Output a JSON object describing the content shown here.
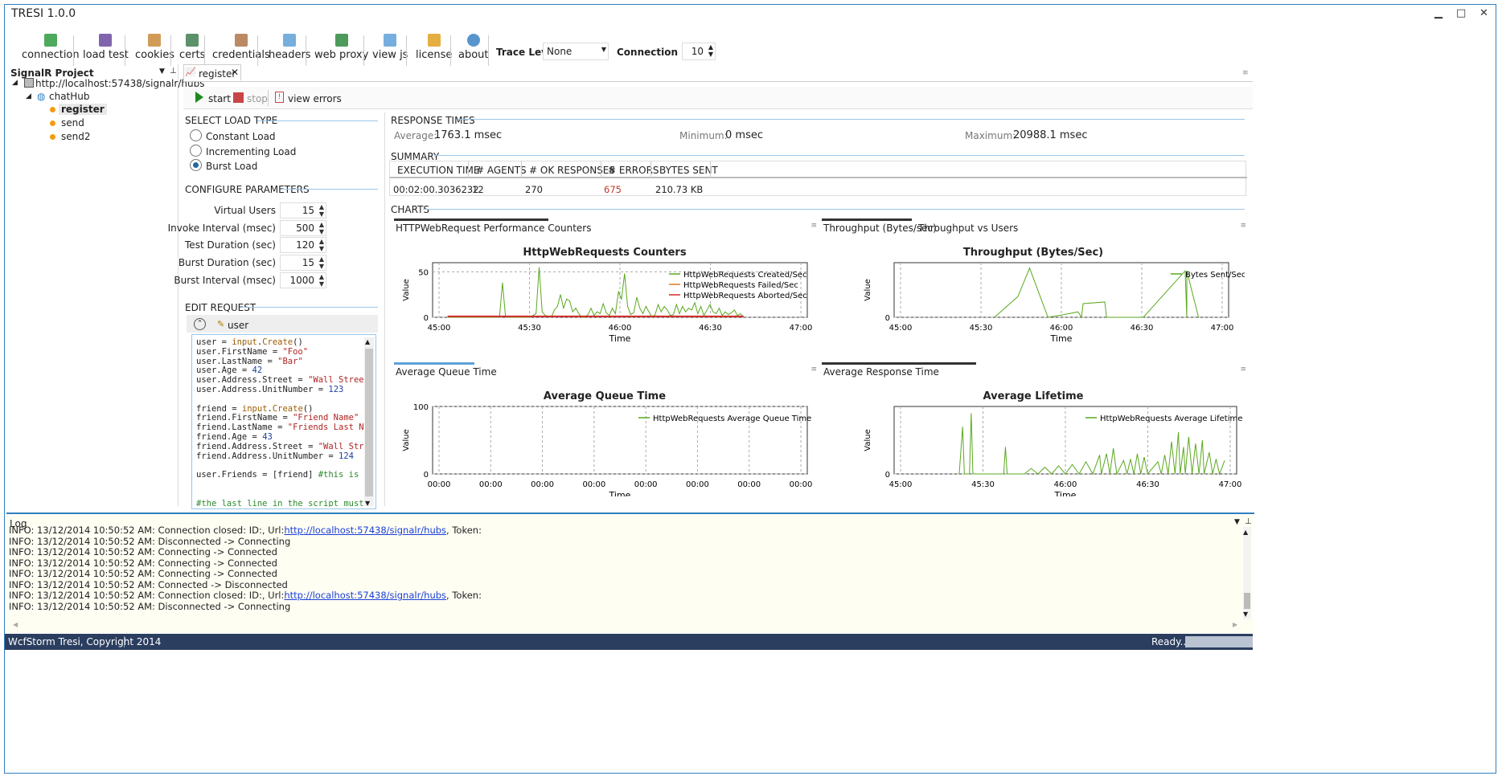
{
  "app": {
    "title": "TRESI 1.0.0",
    "min": "▁",
    "max": "□",
    "close": "✕"
  },
  "toolbar": {
    "items": [
      {
        "label": "connection",
        "icon": "connection-icon"
      },
      {
        "label": "load test",
        "icon": "chart-icon"
      },
      {
        "label": "cookies",
        "icon": "cookie-icon"
      },
      {
        "label": "certs",
        "icon": "cert-icon"
      },
      {
        "label": "credentials",
        "icon": "users-icon"
      },
      {
        "label": "headers",
        "icon": "headers-icon"
      },
      {
        "label": "web proxy",
        "icon": "globe-icon"
      },
      {
        "label": "view js",
        "icon": "js-icon"
      },
      {
        "label": "license",
        "icon": "key-icon"
      },
      {
        "label": "about",
        "icon": "info-icon"
      }
    ],
    "trace_label": "Trace Level:",
    "trace_value": "None",
    "conn_label": "Connection Limit",
    "conn_value": "10"
  },
  "project": {
    "title": "SignalR Project",
    "root": "http://localhost:57438/signalr/hubs",
    "hub": "chatHub",
    "methods": [
      "register",
      "send",
      "send2"
    ]
  },
  "doc_tab": {
    "label": "register"
  },
  "actions": {
    "start": "start",
    "stop": "stop",
    "view_errors": "view errors"
  },
  "load_type": {
    "heading": "SELECT LOAD TYPE",
    "options": [
      "Constant Load",
      "Incrementing Load",
      "Burst Load"
    ],
    "selected": "Burst Load"
  },
  "params": {
    "heading": "CONFIGURE PARAMETERS",
    "rows": [
      {
        "label": "Virtual Users",
        "value": "15"
      },
      {
        "label": "Invoke Interval (msec)",
        "value": "500"
      },
      {
        "label": "Test Duration (sec)",
        "value": "120"
      },
      {
        "label": "Burst Duration (sec)",
        "value": "15"
      },
      {
        "label": "Burst Interval (msec)",
        "value": "1000"
      }
    ]
  },
  "edit_request": {
    "heading": "EDIT REQUEST",
    "param": "user"
  },
  "response_times": {
    "heading": "RESPONSE TIMES",
    "avg_label": "Average:",
    "avg": "1763.1 msec",
    "min_label": "Minimum:",
    "min": "0 msec",
    "max_label": "Maximum:",
    "max": "20988.1 msec"
  },
  "summary": {
    "heading": "SUMMARY",
    "columns": [
      "EXECUTION TIME",
      "# AGENTS",
      "# OK RESPONSES",
      "# ERRORS",
      "BYTES SENT"
    ],
    "row": [
      "00:02:00.3036232",
      "12",
      "270",
      "675",
      "210.73 KB"
    ],
    "error_color": "#c0392b"
  },
  "charts_heading": "CHARTS",
  "chart_tabs": {
    "tl": [
      "HTTPWebRequest Performance Counters"
    ],
    "tr": [
      "Throughput (Bytes/sec)",
      "Throughput vs Users"
    ],
    "bl": [
      "Average Queue Time"
    ],
    "br": [
      "Average Response Time"
    ]
  },
  "chart_data": [
    {
      "type": "line",
      "title": "HttpWebRequests Counters",
      "xlabel": "Time",
      "ylabel": "Value",
      "xticks": [
        "45:00",
        "45:30",
        "46:00",
        "46:30",
        "47:00"
      ],
      "yticks": [
        "0",
        "50"
      ],
      "ylim": [
        0,
        60
      ],
      "series": [
        {
          "name": "HttpWebRequests Created/Sec",
          "color": "#5aa81e",
          "values": [
            0,
            0,
            0,
            0,
            0,
            0,
            0,
            0,
            0,
            0,
            0,
            0,
            0,
            0,
            0,
            0,
            0,
            0,
            38,
            0,
            0,
            0,
            0,
            0,
            0,
            0,
            0,
            0,
            2,
            4,
            55,
            6,
            2,
            1,
            0,
            8,
            12,
            25,
            10,
            20,
            18,
            6,
            10,
            4,
            0,
            0,
            3,
            10,
            2,
            6,
            4,
            15,
            5,
            2,
            10,
            4,
            28,
            20,
            48,
            12,
            3,
            5,
            22,
            10,
            4,
            12,
            6,
            0,
            3,
            14,
            6,
            12,
            8,
            2,
            3,
            14,
            4,
            12,
            6,
            10,
            8,
            16,
            4,
            12,
            2,
            8,
            14,
            6,
            4,
            10,
            2,
            6,
            3,
            5,
            8,
            2,
            4,
            0
          ]
        },
        {
          "name": "HttpWebRequests Failed/Sec",
          "color": "#e07b1f",
          "values": []
        },
        {
          "name": "HttpWebRequests Aborted/Sec",
          "color": "#d42a2a",
          "values": [
            1,
            1,
            1,
            1,
            1,
            1,
            1,
            1,
            1,
            1,
            1,
            1,
            1,
            1,
            1,
            1,
            1,
            1,
            1,
            1,
            1,
            1,
            1,
            1,
            1,
            1,
            1,
            1,
            1,
            1,
            1,
            1,
            1,
            1,
            1,
            1,
            1,
            1,
            1,
            1,
            1,
            1,
            1,
            1,
            1,
            1,
            1,
            1,
            1,
            1,
            1,
            1,
            1,
            1,
            1,
            1,
            1,
            1,
            1,
            1,
            1,
            1,
            1,
            1,
            1,
            1,
            1,
            1,
            1,
            1,
            1,
            1,
            1,
            1,
            1,
            1,
            1,
            1,
            1,
            1,
            1,
            1,
            1,
            1,
            1,
            1,
            1,
            1,
            1,
            1,
            1,
            1,
            1,
            1,
            1,
            1,
            1,
            1
          ]
        }
      ]
    },
    {
      "type": "line",
      "title": "Throughput (Bytes/Sec)",
      "xlabel": "Time",
      "ylabel": "Value",
      "xticks": [
        "45:00",
        "45:30",
        "46:00",
        "46:30",
        "47:00"
      ],
      "yticks": [
        "0"
      ],
      "ylim": [
        0,
        100
      ],
      "series": [
        {
          "name": "Bytes Sent/Sec",
          "color": "#5aa81e",
          "points": [
            [
              0.3,
              0
            ],
            [
              0.37,
              38
            ],
            [
              0.405,
              90
            ],
            [
              0.46,
              0
            ],
            [
              0.5,
              4
            ],
            [
              0.55,
              10
            ],
            [
              0.56,
              0
            ],
            [
              0.565,
              25
            ],
            [
              0.63,
              28
            ],
            [
              0.635,
              0
            ],
            [
              0.745,
              0
            ],
            [
              0.87,
              85
            ],
            [
              0.875,
              0
            ],
            [
              0.875,
              85
            ],
            [
              0.91,
              0
            ]
          ]
        }
      ]
    },
    {
      "type": "line",
      "title": "Average Queue Time",
      "xlabel": "Time",
      "ylabel": "Value",
      "xticks": [
        "00:00",
        "00:00",
        "00:00",
        "00:00",
        "00:00",
        "00:00",
        "00:00",
        "00:00"
      ],
      "yticks": [
        "0",
        "100"
      ],
      "ylim": [
        0,
        100
      ],
      "series": [
        {
          "name": "HttpWebRequests Average Queue Time",
          "color": "#5aa81e",
          "values": []
        }
      ]
    },
    {
      "type": "line",
      "title": "Average Lifetime",
      "xlabel": "Time",
      "ylabel": "Value",
      "xticks": [
        "45:00",
        "45:30",
        "46:00",
        "46:30",
        "47:00"
      ],
      "yticks": [
        "0"
      ],
      "ylim": [
        0,
        100
      ],
      "series": [
        {
          "name": "HttpWebRequests Average Lifetime",
          "color": "#5aa81e",
          "points": [
            [
              0.19,
              0
            ],
            [
              0.2,
              70
            ],
            [
              0.205,
              0
            ],
            [
              0.22,
              0
            ],
            [
              0.225,
              90
            ],
            [
              0.23,
              0
            ],
            [
              0.32,
              0
            ],
            [
              0.325,
              40
            ],
            [
              0.33,
              0
            ],
            [
              0.38,
              0
            ],
            [
              0.4,
              8
            ],
            [
              0.42,
              0
            ],
            [
              0.44,
              10
            ],
            [
              0.46,
              0
            ],
            [
              0.48,
              12
            ],
            [
              0.5,
              0
            ],
            [
              0.52,
              14
            ],
            [
              0.54,
              0
            ],
            [
              0.56,
              18
            ],
            [
              0.58,
              0
            ],
            [
              0.6,
              28
            ],
            [
              0.605,
              0
            ],
            [
              0.62,
              30
            ],
            [
              0.63,
              0
            ],
            [
              0.64,
              38
            ],
            [
              0.65,
              0
            ],
            [
              0.67,
              20
            ],
            [
              0.68,
              0
            ],
            [
              0.69,
              22
            ],
            [
              0.7,
              0
            ],
            [
              0.71,
              30
            ],
            [
              0.72,
              0
            ],
            [
              0.73,
              25
            ],
            [
              0.74,
              0
            ],
            [
              0.77,
              18
            ],
            [
              0.78,
              0
            ],
            [
              0.79,
              28
            ],
            [
              0.8,
              0
            ],
            [
              0.81,
              48
            ],
            [
              0.82,
              0
            ],
            [
              0.83,
              62
            ],
            [
              0.835,
              0
            ],
            [
              0.845,
              40
            ],
            [
              0.85,
              0
            ],
            [
              0.86,
              55
            ],
            [
              0.87,
              0
            ],
            [
              0.88,
              45
            ],
            [
              0.89,
              0
            ],
            [
              0.9,
              50
            ],
            [
              0.905,
              0
            ],
            [
              0.92,
              32
            ],
            [
              0.93,
              0
            ],
            [
              0.94,
              22
            ],
            [
              0.95,
              0
            ],
            [
              0.965,
              20
            ]
          ]
        }
      ]
    }
  ],
  "log": {
    "title": "Log",
    "lines": [
      {
        "text": "INFO: 13/12/2014 10:50:52 AM: Connection closed: ID:, Url:",
        "link": "http://localhost:57438/signalr/hubs",
        "tail": ", Token:"
      },
      {
        "text": "INFO: 13/12/2014 10:50:52 AM: Disconnected -> Connecting",
        "link": "",
        "tail": ""
      },
      {
        "text": "INFO: 13/12/2014 10:50:52 AM: Connecting -> Connected",
        "link": "",
        "tail": ""
      },
      {
        "text": "INFO: 13/12/2014 10:50:52 AM: Connecting -> Connected",
        "link": "",
        "tail": ""
      },
      {
        "text": "INFO: 13/12/2014 10:50:52 AM: Connecting -> Connected",
        "link": "",
        "tail": ""
      },
      {
        "text": "INFO: 13/12/2014 10:50:52 AM: Connected -> Disconnected",
        "link": "",
        "tail": ""
      },
      {
        "text": "INFO: 13/12/2014 10:50:52 AM: Connection closed: ID:, Url:",
        "link": "http://localhost:57438/signalr/hubs",
        "tail": ", Token:"
      },
      {
        "text": "INFO: 13/12/2014 10:50:52 AM: Disconnected -> Connecting",
        "link": "",
        "tail": ""
      }
    ]
  },
  "status": {
    "copyright": "WcfStorm Tresi, Copyright 2014",
    "ready": "Ready..."
  }
}
